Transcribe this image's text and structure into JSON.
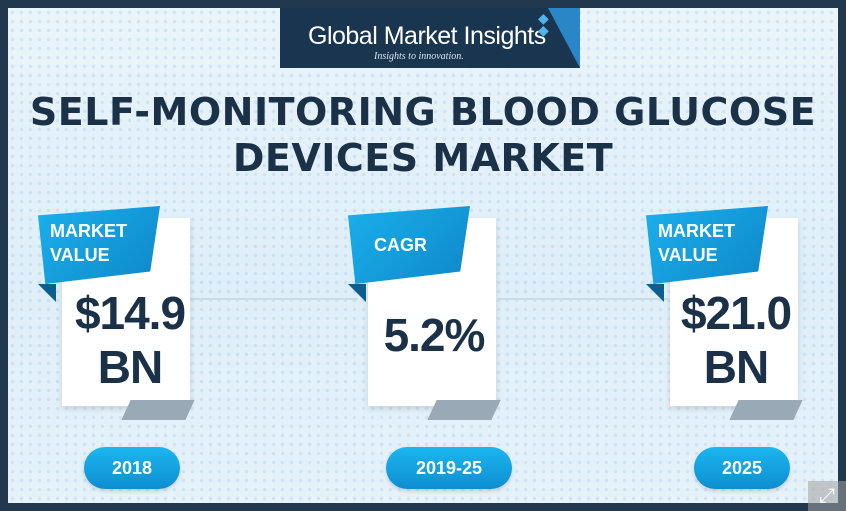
{
  "brand": {
    "name": "Global Market Insights",
    "tagline": "Insights to innovation."
  },
  "title": {
    "line1": "SELF-MONITORING BLOOD GLUCOSE",
    "line2": "DEVICES MARKET"
  },
  "cards": [
    {
      "label_line1": "MARKET",
      "label_line2": "VALUE",
      "value_line1": "$14.9",
      "value_line2": "BN",
      "year": "2018"
    },
    {
      "label_line1": "CAGR",
      "label_line2": "",
      "value_line1": "5.2%",
      "value_line2": "",
      "year": "2019-25"
    },
    {
      "label_line1": "MARKET",
      "label_line2": "VALUE",
      "value_line1": "$21.0",
      "value_line2": "BN",
      "year": "2025"
    }
  ],
  "colors": {
    "accent": "#1ab0ec",
    "dark": "#1b3148",
    "logo_bg": "#1a3550"
  },
  "icons": {
    "corner": "expand-icon"
  }
}
